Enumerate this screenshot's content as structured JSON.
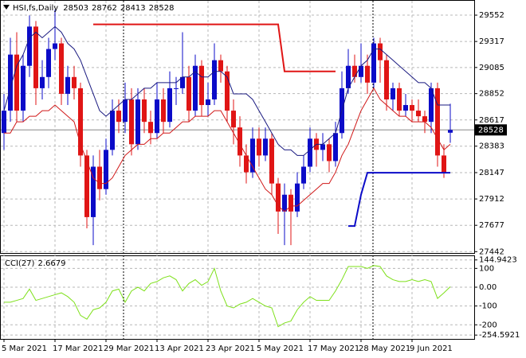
{
  "chart_data": [
    {
      "type": "candlestick",
      "title": "HSI,fs,Daily",
      "categories": [
        "5 Mar 2021",
        null,
        null,
        null,
        null,
        null,
        null,
        null,
        "17 Mar 2021",
        null,
        null,
        null,
        null,
        null,
        null,
        null,
        "29 Mar 2021",
        null,
        null,
        null,
        null,
        null,
        null,
        null,
        "13 Apr 2021",
        null,
        null,
        null,
        null,
        null,
        null,
        null,
        "23 Apr 2021",
        null,
        null,
        null,
        null,
        null,
        null,
        null,
        "5 May 2021",
        null,
        null,
        null,
        null,
        null,
        null,
        null,
        "17 May 2021",
        null,
        null,
        null,
        null,
        null,
        null,
        null,
        "28 May 2021",
        null,
        null,
        null,
        null,
        null,
        null,
        null,
        "9 Jun 2021",
        null,
        null,
        null,
        null,
        null,
        null
      ],
      "open": [
        28500,
        28700,
        29200,
        28700,
        29100,
        29450,
        28900,
        29000,
        29250,
        29300,
        28850,
        29000,
        28900,
        28300,
        27750,
        28200,
        28000,
        28350,
        28700,
        28600,
        28800,
        28400,
        28800,
        28600,
        28500,
        28800,
        28600,
        28900,
        28900,
        29000,
        28700,
        29100,
        28750,
        28800,
        29150,
        29050,
        28700,
        28550,
        28300,
        28150,
        28450,
        28300,
        28450,
        28050,
        27800,
        27950,
        27800,
        28050,
        28200,
        28450,
        28350,
        28400,
        28250,
        28500,
        28900,
        29100,
        29000,
        29100,
        28950,
        29300,
        29150,
        28800,
        28900,
        28700,
        28750,
        28700,
        28650,
        28600,
        28900,
        28300,
        28503
      ],
      "high": [
        28850,
        29350,
        29400,
        29200,
        29550,
        29500,
        29150,
        29350,
        29600,
        29350,
        29100,
        29100,
        28950,
        28350,
        28300,
        28350,
        28450,
        28800,
        28800,
        28950,
        28900,
        28900,
        28900,
        28700,
        28950,
        28900,
        29050,
        29000,
        29400,
        29100,
        29200,
        29150,
        28950,
        29300,
        29200,
        29100,
        28800,
        28650,
        28400,
        28550,
        28550,
        28550,
        28500,
        28100,
        28050,
        28000,
        28150,
        28300,
        28550,
        28500,
        28500,
        28450,
        28600,
        29050,
        29250,
        29200,
        29300,
        29200,
        29350,
        29350,
        29200,
        28950,
        28950,
        28850,
        28800,
        28800,
        28700,
        28950,
        28950,
        28400,
        28762
      ],
      "low": [
        28350,
        28600,
        28600,
        28600,
        29000,
        28750,
        28800,
        28900,
        29150,
        28750,
        28750,
        28800,
        28200,
        27650,
        27500,
        27900,
        27950,
        28300,
        28500,
        28500,
        28300,
        28350,
        28500,
        28400,
        28450,
        28500,
        28550,
        28750,
        28850,
        28600,
        28650,
        28650,
        28650,
        28750,
        28950,
        28600,
        28400,
        28200,
        28050,
        28100,
        28200,
        28250,
        27950,
        27600,
        27500,
        27500,
        27750,
        28000,
        28150,
        28200,
        28250,
        28150,
        28200,
        28450,
        28850,
        28950,
        28950,
        28850,
        28900,
        28950,
        28700,
        28700,
        28650,
        28650,
        28600,
        28600,
        28500,
        28500,
        28200,
        28100,
        28413
      ],
      "close": [
        28700,
        29200,
        28700,
        29100,
        29450,
        28900,
        29000,
        29250,
        29300,
        28850,
        29000,
        28900,
        28300,
        27750,
        28200,
        28000,
        28350,
        28700,
        28600,
        28800,
        28400,
        28800,
        28600,
        28500,
        28800,
        28600,
        28900,
        28900,
        29000,
        28700,
        29100,
        28750,
        28800,
        29150,
        29050,
        28700,
        28550,
        28300,
        28150,
        28450,
        28300,
        28450,
        28050,
        27800,
        27950,
        27800,
        28050,
        28200,
        28450,
        28350,
        28400,
        28250,
        28500,
        28900,
        29100,
        29000,
        29100,
        28950,
        29300,
        29150,
        28800,
        28900,
        28700,
        28750,
        28700,
        28650,
        28600,
        28900,
        28300,
        28150,
        28528
      ],
      "up_color": "#0b0bc8",
      "down_color": "#e01515",
      "series": [
        {
          "color": "#1a1a80",
          "values": [
            28700,
            28900,
            29100,
            29200,
            29350,
            29400,
            29350,
            29400,
            29450,
            29400,
            29300,
            29250,
            29150,
            29000,
            28850,
            28700,
            28650,
            28700,
            28750,
            28800,
            28800,
            28850,
            28900,
            28900,
            28950,
            28950,
            28950,
            28950,
            29000,
            29000,
            29050,
            29000,
            29000,
            29050,
            29050,
            29000,
            28850,
            28850,
            28850,
            28800,
            28700,
            28600,
            28500,
            28400,
            28350,
            28350,
            28300,
            28300,
            28350,
            28400,
            28400,
            28450,
            28500,
            28700,
            28900,
            29000,
            29100,
            29150,
            29250,
            29250,
            29200,
            29150,
            29100,
            29050,
            29000,
            28950,
            28950,
            28900,
            28750,
            28750,
            28750
          ]
        },
        {
          "color": "#d01818",
          "values": [
            28500,
            28500,
            28600,
            28600,
            28650,
            28650,
            28700,
            28700,
            28750,
            28700,
            28650,
            28600,
            28400,
            28250,
            28100,
            28050,
            28050,
            28100,
            28200,
            28300,
            28350,
            28400,
            28400,
            28450,
            28450,
            28500,
            28500,
            28550,
            28600,
            28600,
            28650,
            28650,
            28650,
            28700,
            28700,
            28600,
            28500,
            28400,
            28300,
            28200,
            28100,
            28000,
            27950,
            27850,
            27800,
            27850,
            27850,
            27900,
            27950,
            28000,
            28050,
            28050,
            28150,
            28300,
            28400,
            28550,
            28700,
            28800,
            28900,
            28800,
            28750,
            28700,
            28650,
            28650,
            28600,
            28600,
            28600,
            28550,
            28450,
            28350,
            28400
          ]
        },
        {
          "color": "#e01515",
          "width": 2,
          "values": [
            null,
            null,
            null,
            null,
            null,
            null,
            null,
            null,
            null,
            null,
            null,
            null,
            null,
            null,
            29470,
            29470,
            29470,
            29470,
            29470,
            29470,
            29470,
            29470,
            29470,
            29470,
            29470,
            29470,
            29470,
            29470,
            29470,
            29470,
            29470,
            29470,
            29470,
            29470,
            29470,
            29470,
            29470,
            29470,
            29470,
            29470,
            29470,
            29470,
            29470,
            29470,
            29050,
            29050,
            29050,
            29050,
            29050,
            29050,
            29050,
            29050,
            29050,
            null,
            null,
            null,
            null,
            null,
            null,
            null,
            null,
            null,
            null,
            null,
            null,
            null,
            null,
            null,
            null,
            null,
            null
          ]
        },
        {
          "color": "#0b0bc8",
          "width": 2,
          "values": [
            null,
            null,
            null,
            null,
            null,
            null,
            null,
            null,
            null,
            null,
            null,
            null,
            null,
            null,
            null,
            null,
            null,
            null,
            null,
            null,
            null,
            null,
            null,
            null,
            null,
            null,
            null,
            null,
            null,
            null,
            null,
            null,
            null,
            null,
            null,
            null,
            null,
            null,
            null,
            null,
            null,
            null,
            null,
            null,
            null,
            null,
            null,
            null,
            null,
            null,
            null,
            null,
            null,
            null,
            27670,
            27670,
            27950,
            28146,
            28146,
            28146,
            28146,
            28146,
            28146,
            28146,
            28146,
            28146,
            28146,
            28146,
            28146,
            28146,
            28146
          ]
        }
      ],
      "ylim": [
        27430,
        29680
      ],
      "yticks": [
        29552,
        29317,
        29085,
        28852,
        28617,
        28383,
        28147,
        27912,
        27677,
        27442
      ],
      "grid": true
    },
    {
      "type": "line",
      "title": "CCI(27)",
      "series": [
        {
          "color": "#7ee01a",
          "values": [
            -80,
            -80,
            -70,
            -60,
            -10,
            -70,
            -60,
            -50,
            -40,
            -30,
            -50,
            -80,
            -150,
            -170,
            -120,
            -110,
            -80,
            -20,
            -10,
            -80,
            -20,
            0,
            -20,
            20,
            30,
            50,
            60,
            40,
            -20,
            20,
            40,
            10,
            30,
            100,
            -20,
            -100,
            -110,
            -90,
            -80,
            -60,
            -80,
            -100,
            -110,
            -210,
            -190,
            -180,
            -120,
            -80,
            -50,
            -70,
            -70,
            -70,
            -20,
            40,
            110,
            110,
            110,
            100,
            115,
            110,
            60,
            40,
            30,
            30,
            40,
            30,
            40,
            30,
            -60,
            -30,
            2.6679
          ]
        }
      ],
      "ylim": [
        -275,
        165
      ],
      "yticks": [
        144.9423,
        100,
        {
          "value": 0,
          "label": "0.00"
        },
        -100,
        -200,
        -254.5921
      ],
      "grid": true
    }
  ]
}
